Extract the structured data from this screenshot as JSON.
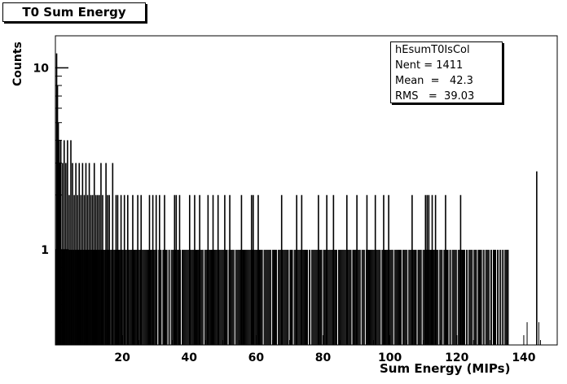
{
  "chart_data": {
    "type": "bar",
    "title": "T0 Sum Energy",
    "xlabel": "Sum Energy (MIPs)",
    "ylabel": "Counts",
    "yscale": "log",
    "xlim": [
      0,
      150
    ],
    "ylim": [
      0.3,
      15
    ],
    "x_ticks": [
      20,
      40,
      60,
      80,
      100,
      120,
      140
    ],
    "y_ticks": [
      1,
      10
    ],
    "stats": {
      "name": "hEsumT0IsCol",
      "entries_label": "Nent = 1411",
      "mean_label": "Mean  =   42.3",
      "rms_label": "RMS   =  39.03"
    },
    "bin_width": 0.25,
    "ranges": [
      {
        "from": 0.0,
        "to": 135.5,
        "base": 1,
        "note": "nearly every bin filled with 1 count"
      },
      {
        "from": 135.5,
        "to": 150,
        "base": 0
      }
    ],
    "spikes": [
      {
        "x": 0.25,
        "y": 12
      },
      {
        "x": 0.5,
        "y": 8
      },
      {
        "x": 0.75,
        "y": 5
      },
      {
        "x": 1.0,
        "y": 4
      },
      {
        "x": 1.25,
        "y": 3
      },
      {
        "x": 1.5,
        "y": 4
      },
      {
        "x": 2.0,
        "y": 3
      },
      {
        "x": 2.5,
        "y": 4
      },
      {
        "x": 3.0,
        "y": 3
      },
      {
        "x": 3.5,
        "y": 4
      },
      {
        "x": 4.0,
        "y": 2
      },
      {
        "x": 4.5,
        "y": 4
      },
      {
        "x": 5.0,
        "y": 3
      },
      {
        "x": 5.5,
        "y": 2
      },
      {
        "x": 6.0,
        "y": 3
      },
      {
        "x": 6.5,
        "y": 2
      },
      {
        "x": 7.0,
        "y": 3
      },
      {
        "x": 7.5,
        "y": 2
      },
      {
        "x": 8.0,
        "y": 3
      },
      {
        "x": 8.5,
        "y": 2
      },
      {
        "x": 9.0,
        "y": 3
      },
      {
        "x": 9.5,
        "y": 2
      },
      {
        "x": 10.0,
        "y": 3
      },
      {
        "x": 10.5,
        "y": 2
      },
      {
        "x": 11.0,
        "y": 2
      },
      {
        "x": 11.5,
        "y": 3
      },
      {
        "x": 12.0,
        "y": 2
      },
      {
        "x": 12.5,
        "y": 2
      },
      {
        "x": 13.0,
        "y": 2
      },
      {
        "x": 13.5,
        "y": 3
      },
      {
        "x": 14.0,
        "y": 2
      },
      {
        "x": 15.0,
        "y": 3
      },
      {
        "x": 15.5,
        "y": 2
      },
      {
        "x": 16.0,
        "y": 2
      },
      {
        "x": 17.0,
        "y": 3
      },
      {
        "x": 18.0,
        "y": 2
      },
      {
        "x": 18.5,
        "y": 2
      },
      {
        "x": 19.5,
        "y": 2
      },
      {
        "x": 20.5,
        "y": 2
      },
      {
        "x": 21.5,
        "y": 2
      },
      {
        "x": 23.0,
        "y": 2
      },
      {
        "x": 24.5,
        "y": 2
      },
      {
        "x": 25.5,
        "y": 2
      },
      {
        "x": 28.0,
        "y": 2
      },
      {
        "x": 29.0,
        "y": 2
      },
      {
        "x": 30.0,
        "y": 2
      },
      {
        "x": 31.0,
        "y": 2
      },
      {
        "x": 32.5,
        "y": 2
      },
      {
        "x": 35.5,
        "y": 2
      },
      {
        "x": 36.0,
        "y": 2
      },
      {
        "x": 37.0,
        "y": 2
      },
      {
        "x": 40.0,
        "y": 2
      },
      {
        "x": 41.5,
        "y": 2
      },
      {
        "x": 43.0,
        "y": 2
      },
      {
        "x": 45.5,
        "y": 2
      },
      {
        "x": 47.0,
        "y": 2
      },
      {
        "x": 48.5,
        "y": 2
      },
      {
        "x": 50.5,
        "y": 2
      },
      {
        "x": 52.0,
        "y": 2
      },
      {
        "x": 55.5,
        "y": 2
      },
      {
        "x": 58.5,
        "y": 2
      },
      {
        "x": 59.0,
        "y": 2
      },
      {
        "x": 60.5,
        "y": 2
      },
      {
        "x": 67.5,
        "y": 2
      },
      {
        "x": 72.0,
        "y": 2
      },
      {
        "x": 73.5,
        "y": 2
      },
      {
        "x": 78.5,
        "y": 2
      },
      {
        "x": 81.0,
        "y": 2
      },
      {
        "x": 83.0,
        "y": 2
      },
      {
        "x": 87.0,
        "y": 2
      },
      {
        "x": 90.0,
        "y": 2
      },
      {
        "x": 93.0,
        "y": 2
      },
      {
        "x": 95.5,
        "y": 2
      },
      {
        "x": 98.0,
        "y": 2
      },
      {
        "x": 99.5,
        "y": 2
      },
      {
        "x": 106.5,
        "y": 2
      },
      {
        "x": 110.5,
        "y": 2
      },
      {
        "x": 111.0,
        "y": 2
      },
      {
        "x": 111.5,
        "y": 2
      },
      {
        "x": 112.5,
        "y": 2
      },
      {
        "x": 113.5,
        "y": 2
      },
      {
        "x": 116.5,
        "y": 2
      },
      {
        "x": 121.0,
        "y": 2
      },
      {
        "x": 143.75,
        "y": 2.7
      }
    ],
    "gaps": [
      30.5,
      31.75,
      33.5,
      34.25,
      37.5,
      44.25,
      51.5,
      53.5,
      62.0,
      64.5,
      66.25,
      69.75,
      71.0,
      75.5,
      76.25,
      79.75,
      84.25,
      88.5,
      91.25,
      92.5,
      97.25,
      101.0,
      103.5,
      105.25,
      108.0,
      109.5,
      114.5,
      115.75,
      117.5,
      118.25,
      120.0,
      122.5,
      123.25,
      124.75,
      126.0,
      127.5,
      128.25,
      129.75,
      130.5,
      131.75,
      132.5,
      133.25,
      134.0
    ],
    "sparse": [
      {
        "x": 141.0,
        "y": 0.4
      },
      {
        "x": 144.5,
        "y": 0.4
      }
    ]
  }
}
